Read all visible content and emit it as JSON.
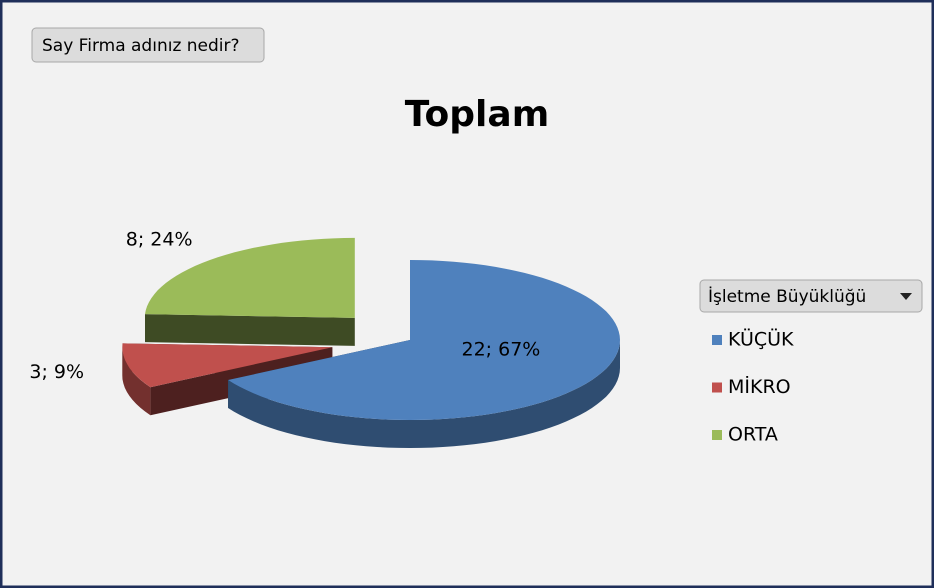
{
  "chart_data": {
    "type": "pie",
    "title": "Toplam",
    "field_button": "Say Firma adınız nedir?",
    "legend_title": "İşletme Büyüklüğü",
    "categories": [
      "KÜÇÜK",
      "MİKRO",
      "ORTA"
    ],
    "values": [
      22,
      3,
      8
    ],
    "value_labels": [
      "22; 67%",
      "3; 9%",
      "8; 24%"
    ],
    "colors": [
      "#4f81bd",
      "#c0504d",
      "#9bbb59"
    ],
    "legend": "right"
  }
}
